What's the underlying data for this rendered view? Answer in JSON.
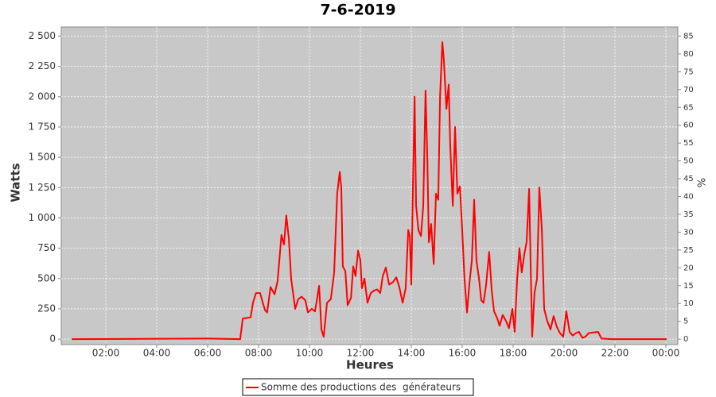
{
  "chart_data": {
    "type": "line",
    "title": "7-6-2019",
    "x_label": "Heures",
    "y_label": "Watts",
    "y2_label": "%",
    "x": [
      0.66,
      6.0,
      7.28,
      7.38,
      7.69,
      7.78,
      7.9,
      8.06,
      8.25,
      8.34,
      8.47,
      8.63,
      8.75,
      8.9,
      9.0,
      9.09,
      9.19,
      9.28,
      9.44,
      9.56,
      9.69,
      9.84,
      9.94,
      10.09,
      10.22,
      10.38,
      10.47,
      10.56,
      10.69,
      10.84,
      10.97,
      11.09,
      11.19,
      11.25,
      11.31,
      11.41,
      11.5,
      11.63,
      11.72,
      11.81,
      11.91,
      12.0,
      12.06,
      12.16,
      12.28,
      12.41,
      12.53,
      12.66,
      12.78,
      12.88,
      13.0,
      13.13,
      13.28,
      13.41,
      13.53,
      13.66,
      13.78,
      13.88,
      13.94,
      14.0,
      14.06,
      14.13,
      14.19,
      14.28,
      14.38,
      14.47,
      14.56,
      14.63,
      14.69,
      14.78,
      14.88,
      14.97,
      15.06,
      15.13,
      15.22,
      15.28,
      15.38,
      15.47,
      15.53,
      15.63,
      15.72,
      15.81,
      15.91,
      16.0,
      16.09,
      16.19,
      16.28,
      16.38,
      16.47,
      16.56,
      16.66,
      16.75,
      16.84,
      16.94,
      17.06,
      17.16,
      17.25,
      17.38,
      17.47,
      17.59,
      17.72,
      17.84,
      17.97,
      18.06,
      18.16,
      18.25,
      18.34,
      18.44,
      18.53,
      18.63,
      18.69,
      18.75,
      18.84,
      18.94,
      19.03,
      19.13,
      19.22,
      19.34,
      19.47,
      19.59,
      19.72,
      19.84,
      19.97,
      20.09,
      20.22,
      20.34,
      20.47,
      20.59,
      20.72,
      20.84,
      20.97,
      21.16,
      21.34,
      21.47,
      21.9,
      24.03
    ],
    "series": [
      {
        "name": "Somme des productions des  générateurs",
        "color": "#ff0000",
        "values": [
          0,
          5,
          0,
          170,
          180,
          300,
          380,
          380,
          240,
          220,
          430,
          370,
          480,
          860,
          780,
          1020,
          830,
          500,
          250,
          330,
          350,
          320,
          220,
          250,
          230,
          440,
          80,
          20,
          300,
          330,
          550,
          1200,
          1380,
          1250,
          600,
          560,
          280,
          340,
          600,
          520,
          730,
          650,
          420,
          500,
          300,
          380,
          400,
          410,
          380,
          520,
          590,
          450,
          470,
          510,
          430,
          300,
          420,
          900,
          850,
          450,
          1200,
          2000,
          1100,
          900,
          850,
          1100,
          2050,
          1500,
          800,
          950,
          620,
          1200,
          1150,
          2000,
          2450,
          2300,
          1900,
          2100,
          1600,
          1100,
          1750,
          1200,
          1260,
          900,
          500,
          220,
          450,
          650,
          1150,
          650,
          500,
          320,
          300,
          450,
          720,
          400,
          230,
          170,
          110,
          200,
          150,
          90,
          250,
          60,
          500,
          750,
          550,
          700,
          800,
          1240,
          600,
          20,
          380,
          500,
          1250,
          900,
          250,
          150,
          80,
          190,
          100,
          50,
          20,
          230,
          60,
          30,
          50,
          60,
          10,
          20,
          50,
          55,
          60,
          5,
          0,
          0
        ]
      }
    ],
    "xlim": [
      0.25,
      24.47
    ],
    "xticks": [
      {
        "value": 2,
        "label": "02:00"
      },
      {
        "value": 4,
        "label": "04:00"
      },
      {
        "value": 6,
        "label": "06:00"
      },
      {
        "value": 8,
        "label": "08:00"
      },
      {
        "value": 10,
        "label": "10:00"
      },
      {
        "value": 12,
        "label": "12:00"
      },
      {
        "value": 14,
        "label": "14:00"
      },
      {
        "value": 16,
        "label": "16:00"
      },
      {
        "value": 18,
        "label": "18:00"
      },
      {
        "value": 20,
        "label": "20:00"
      },
      {
        "value": 22,
        "label": "22:00"
      },
      {
        "value": 24,
        "label": "00:00"
      }
    ],
    "ylim": [
      -45,
      2575
    ],
    "yticks": [
      0,
      250,
      500,
      750,
      {
        "value": 1000,
        "label": "1 000"
      },
      {
        "value": 1250,
        "label": "1 250"
      },
      {
        "value": 1500,
        "label": "1 500"
      },
      {
        "value": 1750,
        "label": "1 750"
      },
      {
        "value": 2000,
        "label": "2 000"
      },
      {
        "value": 2250,
        "label": "2 250"
      },
      {
        "value": 2500,
        "label": "2 500"
      }
    ],
    "y2lim": [
      -1.53,
      87.55
    ],
    "y2ticks": [
      0,
      5,
      10,
      15,
      20,
      25,
      30,
      35,
      40,
      45,
      50,
      55,
      60,
      65,
      70,
      75,
      80,
      85
    ],
    "grid": true
  }
}
